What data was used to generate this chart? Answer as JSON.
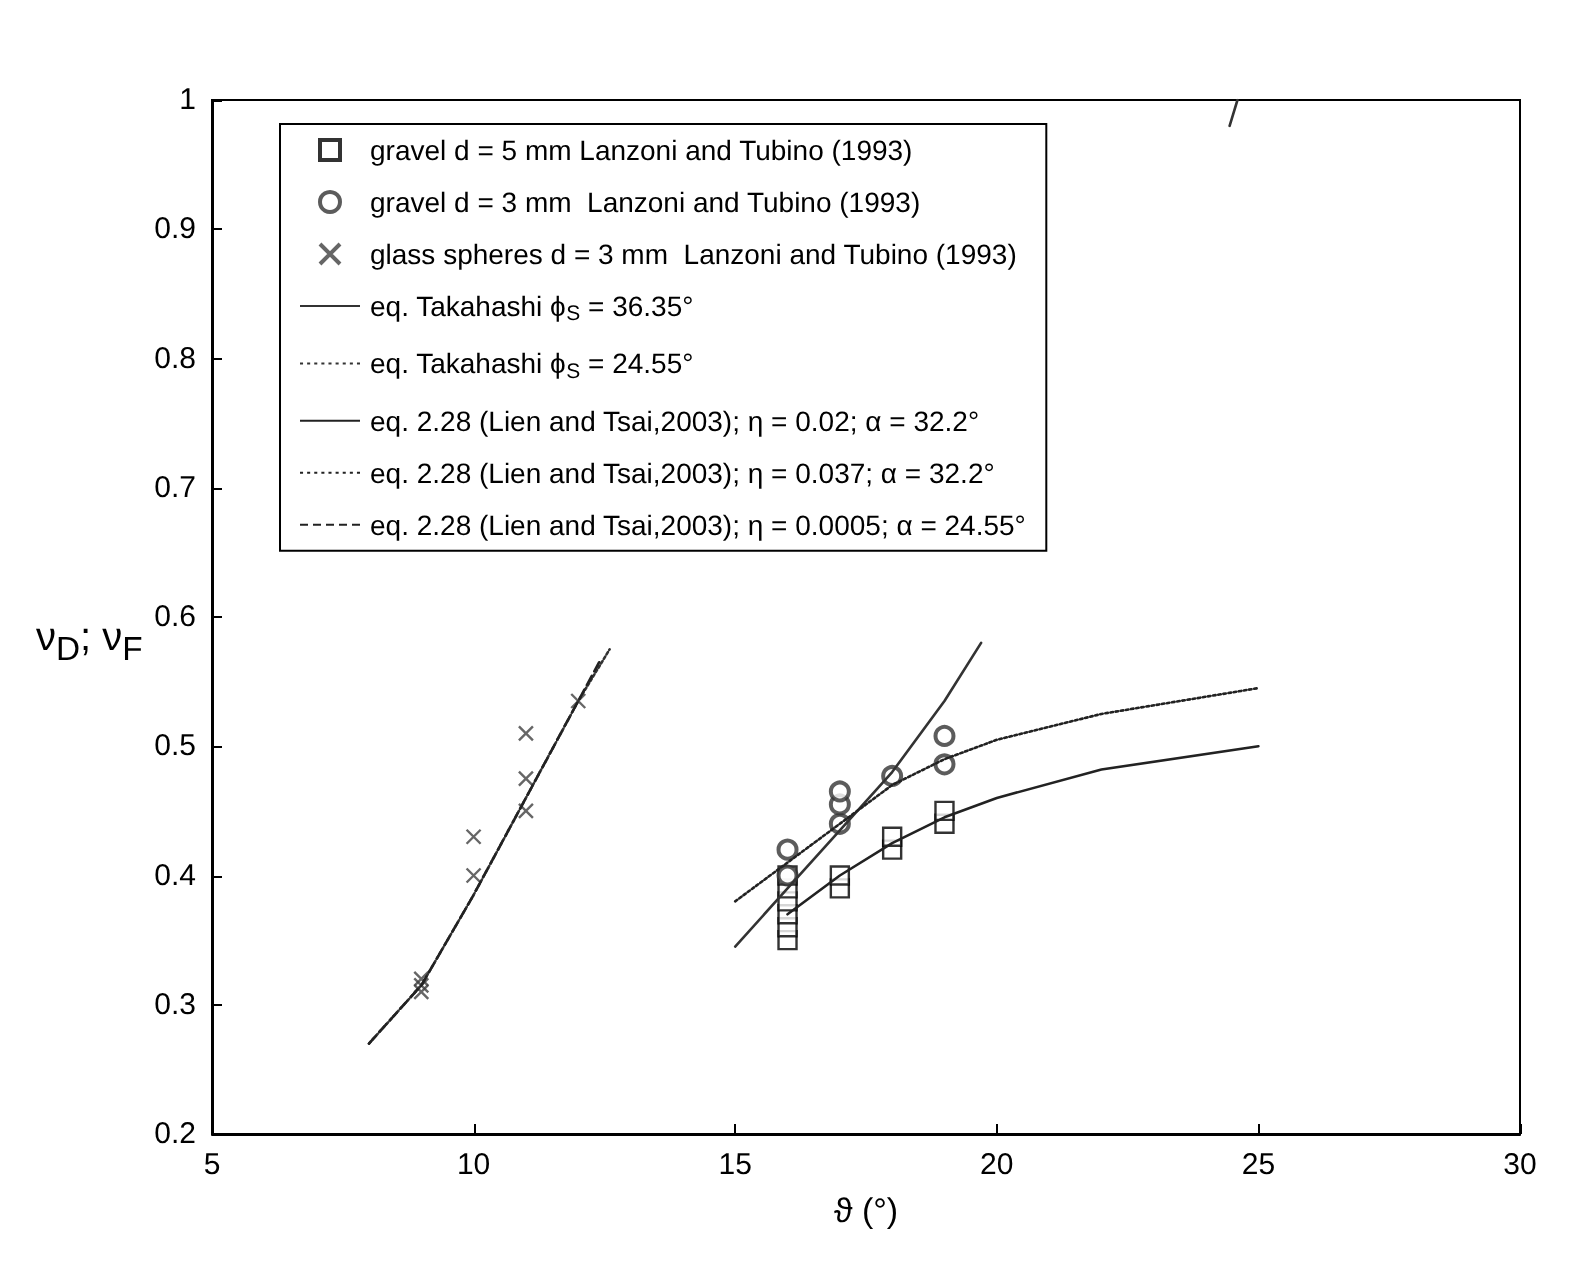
{
  "chart_data": {
    "type": "scatter",
    "xlabel": "ϑ (°)",
    "ylabel": "ν$_{D}$; ν$_{F}$",
    "xlim": [
      5,
      30
    ],
    "xticks": [
      5,
      10,
      15,
      20,
      25,
      30
    ],
    "ylim": [
      0.2,
      1
    ],
    "yticks": [
      0.2,
      0.3,
      0.4,
      0.5,
      0.6,
      0.7,
      0.8,
      0.9,
      1
    ],
    "grid": false,
    "legend": "top left",
    "series": [
      {
        "name": "gravel d = 5 mm Lanzoni and Tubino (1993)",
        "type": "scatter",
        "marker": "square",
        "color": "#000000",
        "x": [
          16,
          16,
          16,
          16,
          16,
          16,
          17,
          17,
          18,
          18,
          19,
          19
        ],
        "values": [
          0.35,
          0.36,
          0.37,
          0.38,
          0.39,
          0.4,
          0.39,
          0.4,
          0.42,
          0.43,
          0.44,
          0.45
        ]
      },
      {
        "name": "gravel d = 3 mm  Lanzoni and Tubino (1993)",
        "type": "scatter",
        "marker": "circle",
        "color": "#333333",
        "x": [
          16,
          16,
          17,
          17,
          17,
          18,
          19,
          19
        ],
        "values": [
          0.4,
          0.42,
          0.44,
          0.455,
          0.465,
          0.477,
          0.486,
          0.508
        ]
      },
      {
        "name": "glass spheres d = 3 mm  Lanzoni and Tubino (1993)",
        "type": "scatter",
        "marker": "cross",
        "color": "#404040",
        "x": [
          9,
          9,
          9,
          10,
          10,
          11,
          11,
          11,
          12
        ],
        "values": [
          0.31,
          0.315,
          0.32,
          0.4,
          0.43,
          0.45,
          0.475,
          0.51,
          0.535
        ]
      },
      {
        "name": "eq. Takahashi ϕ$_{S}$ = 36.35°",
        "type": "line",
        "marker": "none",
        "line_style": "solid",
        "color": "#333333",
        "x": [
          15,
          16,
          17,
          18,
          19,
          19.7,
          22,
          24.45,
          24.6
        ],
        "values": [
          0.345,
          0.39,
          0.435,
          0.48,
          0.535,
          0.58,
          null,
          0.98,
          1.0
        ]
      },
      {
        "name": "eq. Takahashi ϕ$_{S}$ = 24.55°",
        "type": "line",
        "marker": "none",
        "line_style": "dotted",
        "color": "#333333",
        "x": [
          8,
          9,
          10,
          11,
          12,
          12.6
        ],
        "values": [
          0.27,
          0.315,
          0.385,
          0.46,
          0.535,
          0.575
        ]
      },
      {
        "name": "eq. 2.28 (Lien and Tsai,2003); η = 0.02; α = 32.2°",
        "type": "line",
        "marker": "none",
        "line_style": "solid",
        "color": "#222222",
        "x": [
          16,
          17,
          18,
          19,
          20,
          22,
          25
        ],
        "values": [
          0.37,
          0.4,
          0.425,
          0.445,
          0.46,
          0.482,
          0.5
        ]
      },
      {
        "name": "eq. 2.28 (Lien and Tsai,2003); η = 0.037; α = 32.2°",
        "type": "line",
        "marker": "none",
        "line_style": "dotted",
        "color": "#222222",
        "x": [
          15,
          16,
          17,
          18,
          19,
          20,
          22,
          25
        ],
        "values": [
          0.38,
          0.41,
          0.44,
          0.47,
          0.49,
          0.505,
          0.525,
          0.545
        ]
      },
      {
        "name": "eq. 2.28 (Lien and Tsai,2003); η = 0.0005; α = 24.55°",
        "type": "line",
        "marker": "none",
        "line_style": "dashed",
        "color": "#222222",
        "x": [
          8,
          9,
          10,
          11,
          12,
          12.4
        ],
        "values": [
          0.27,
          0.315,
          0.385,
          0.46,
          0.535,
          0.565
        ]
      }
    ]
  }
}
